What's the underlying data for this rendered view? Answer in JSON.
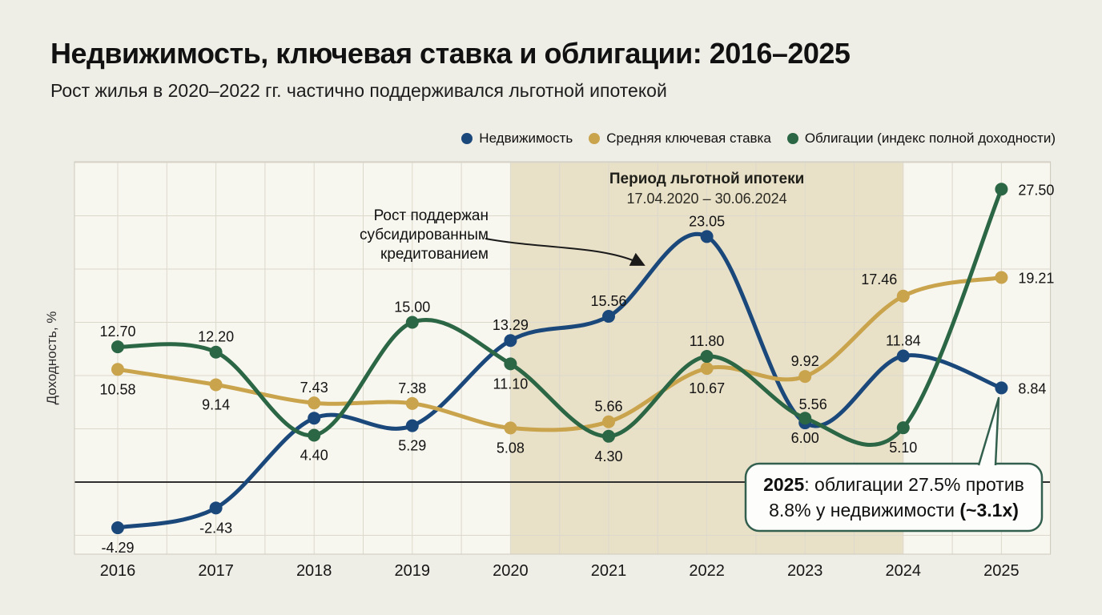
{
  "page": {
    "title": "Недвижимость, ключевая ставка и облигации: 2016–2025",
    "subtitle": "Рост жилья в 2020–2022 гг. частично поддерживался льготной ипотекой"
  },
  "legend": {
    "items": [
      {
        "label": "Недвижимость",
        "color": "#1b487b"
      },
      {
        "label": "Средняя ключевая ставка",
        "color": "#c9a44c"
      },
      {
        "label": "Облигации (индекс полной доходности)",
        "color": "#2b6645"
      }
    ]
  },
  "chart_data": {
    "type": "line",
    "x": [
      2016,
      2017,
      2018,
      2019,
      2020,
      2021,
      2022,
      2023,
      2024,
      2025
    ],
    "x_tick_labels": [
      "2016",
      "2017",
      "2018",
      "2019",
      "2020",
      "2021",
      "2022",
      "2023",
      "2024",
      "2025"
    ],
    "xlabel": "",
    "ylabel": "Доходность, %",
    "ylim": [
      -6.8,
      30.1
    ],
    "grid": {
      "y_step": 5,
      "x_minor_per_year": 2,
      "zero_line": true
    },
    "legend_position": "top-right",
    "series": [
      {
        "name": "Недвижимость",
        "color": "#1b487b",
        "values": [
          -4.29,
          -2.43,
          6.0,
          5.29,
          13.29,
          15.56,
          23.05,
          5.56,
          11.84,
          8.84
        ],
        "labels": [
          "-4.29",
          "-2.43",
          null,
          "5.29",
          "13.29",
          "15.56",
          "23.05",
          "5.56",
          "11.84",
          "8.84"
        ],
        "label_pos": [
          "below",
          "below",
          null,
          "below",
          "above",
          "above",
          "above",
          "above-right",
          "above",
          "right"
        ]
      },
      {
        "name": "Средняя ключевая ставка",
        "color": "#c9a44c",
        "values": [
          10.58,
          9.14,
          7.43,
          7.38,
          5.08,
          5.66,
          10.67,
          9.92,
          17.46,
          19.21
        ],
        "labels": [
          "10.58",
          "9.14",
          "7.43",
          "7.38",
          "5.08",
          "5.66",
          "10.67",
          "9.92",
          "17.46",
          "19.21"
        ],
        "label_pos": [
          "below",
          "below",
          "above",
          "above",
          "below",
          "above",
          "below",
          "above",
          "above-left",
          "right"
        ]
      },
      {
        "name": "Облигации (индекс полной доходности)",
        "color": "#2b6645",
        "values": [
          12.7,
          12.2,
          4.4,
          15.0,
          11.1,
          4.3,
          11.8,
          6.0,
          5.1,
          27.5
        ],
        "labels": [
          "12.70",
          "12.20",
          "4.40",
          "15.00",
          "11.10",
          "4.30",
          "11.80",
          "6.00",
          "5.10",
          "27.50"
        ],
        "label_pos": [
          "above",
          "above",
          "below",
          "above",
          "below",
          "below",
          "above",
          "below",
          "below",
          "right"
        ]
      }
    ],
    "shaded_region": {
      "x_from": 2020,
      "x_to": 2024,
      "color": "#e9e0c8",
      "title": "Период льготной ипотеки",
      "subtitle": "17.04.2020 – 30.06.2024"
    },
    "annotation": {
      "text": "Рост поддержан субсидированным кредитованием"
    },
    "callout": {
      "line1_bold": "2025",
      "line1_rest": ": облигации 27.5% против",
      "line2_pre": "8.8% у недвижимости ",
      "line2_bold": "(~3.1x)",
      "border_color": "#33604e"
    }
  }
}
